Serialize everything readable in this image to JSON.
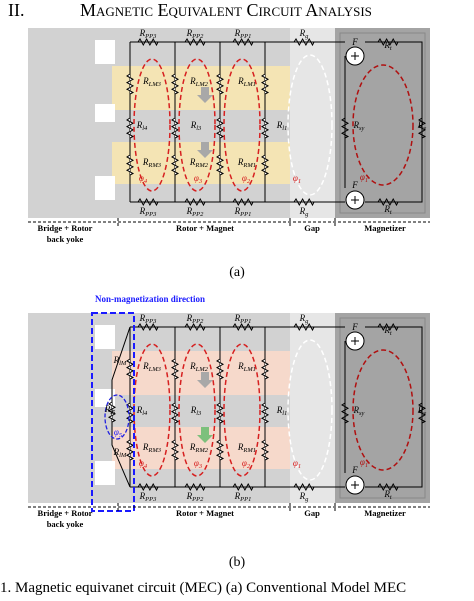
{
  "section_heading": {
    "number": "II.",
    "title": "Magnetic Equivalent Circuit Analysis"
  },
  "figure_a": {
    "resistors": [
      {
        "symbol": "R",
        "subscript": "PP3"
      },
      {
        "symbol": "R",
        "subscript": "PP2"
      },
      {
        "symbol": "R",
        "subscript": "PP1"
      },
      {
        "symbol": "R",
        "subscript": "g"
      },
      {
        "symbol": "R",
        "subscript": "PP3"
      },
      {
        "symbol": "R",
        "subscript": "PP2"
      },
      {
        "symbol": "R",
        "subscript": "PP1"
      },
      {
        "symbol": "R",
        "subscript": "g"
      },
      {
        "symbol": "R",
        "subscript": "LM3"
      },
      {
        "symbol": "R",
        "subscript": "LM2"
      },
      {
        "symbol": "R",
        "subscript": "LM1"
      },
      {
        "symbol": "R",
        "subscript": "l4"
      },
      {
        "symbol": "R",
        "subscript": "l3"
      },
      {
        "symbol": "R",
        "subscript": "l1"
      },
      {
        "symbol": "R",
        "subscript": "RM3"
      },
      {
        "symbol": "R",
        "subscript": "RM2"
      },
      {
        "symbol": "R",
        "subscript": "RM1"
      },
      {
        "symbol": "R",
        "subscript": "t"
      },
      {
        "symbol": "R",
        "subscript": "t"
      },
      {
        "symbol": "R",
        "subscript": "sy"
      },
      {
        "symbol": "R",
        "subscript": "y"
      }
    ],
    "fluxes": [
      {
        "symbol": "φ",
        "subscript": "4"
      },
      {
        "symbol": "φ",
        "subscript": "3"
      },
      {
        "symbol": "φ",
        "subscript": "2"
      },
      {
        "symbol": "φ",
        "subscript": "1"
      },
      {
        "symbol": "φ",
        "subscript": "1"
      }
    ],
    "sources": [
      "F",
      "F"
    ],
    "regions": [
      {
        "lines": [
          "Bridge + Rotor",
          "back yoke"
        ]
      },
      {
        "lines": [
          "Rotor + Magnet"
        ]
      },
      {
        "lines": [
          "Gap"
        ]
      },
      {
        "lines": [
          "Magnetizer"
        ]
      }
    ],
    "tag": "(a)"
  },
  "figure_b": {
    "annotation": "Non-magnetization direction",
    "resistors": [
      {
        "symbol": "R",
        "subscript": "PP3"
      },
      {
        "symbol": "R",
        "subscript": "PP2"
      },
      {
        "symbol": "R",
        "subscript": "PP1"
      },
      {
        "symbol": "R",
        "subscript": "g"
      },
      {
        "symbol": "R",
        "subscript": "PP3"
      },
      {
        "symbol": "R",
        "subscript": "PP2"
      },
      {
        "symbol": "R",
        "subscript": "PP1"
      },
      {
        "symbol": "R",
        "subscript": "g"
      },
      {
        "symbol": "R",
        "subscript": "LM3"
      },
      {
        "symbol": "R",
        "subscript": "LM2"
      },
      {
        "symbol": "R",
        "subscript": "LM1"
      },
      {
        "symbol": "R",
        "subscript": "l4"
      },
      {
        "symbol": "R",
        "subscript": "l3"
      },
      {
        "symbol": "R",
        "subscript": "l1"
      },
      {
        "symbol": "R",
        "subscript": "RM3"
      },
      {
        "symbol": "R",
        "subscript": "RM2"
      },
      {
        "symbol": "R",
        "subscript": "RM1"
      },
      {
        "symbol": "R",
        "subscript": "t"
      },
      {
        "symbol": "R",
        "subscript": "t"
      },
      {
        "symbol": "R",
        "subscript": "sy"
      },
      {
        "symbol": "R",
        "subscript": "y"
      },
      {
        "symbol": "R",
        "subscript": "lM"
      },
      {
        "symbol": "R",
        "subscript": "l5"
      },
      {
        "symbol": "R",
        "subscript": "lM"
      }
    ],
    "fluxes": [
      {
        "symbol": "φ",
        "subscript": "4"
      },
      {
        "symbol": "φ",
        "subscript": "3"
      },
      {
        "symbol": "φ",
        "subscript": "2"
      },
      {
        "symbol": "φ",
        "subscript": "1"
      },
      {
        "symbol": "φ",
        "subscript": "1"
      },
      {
        "symbol": "φ",
        "subscript": "5"
      }
    ],
    "sources": [
      "F",
      "F"
    ],
    "regions": [
      {
        "lines": [
          "Bridge + Rotor",
          "back yoke"
        ]
      },
      {
        "lines": [
          "Rotor + Magnet"
        ]
      },
      {
        "lines": [
          "Gap"
        ]
      },
      {
        "lines": [
          "Magnetizer"
        ]
      }
    ],
    "tag": "(b)"
  },
  "caption": "1.   Magnetic equivanet circuit (MEC) (a) Conventional Model MEC"
}
